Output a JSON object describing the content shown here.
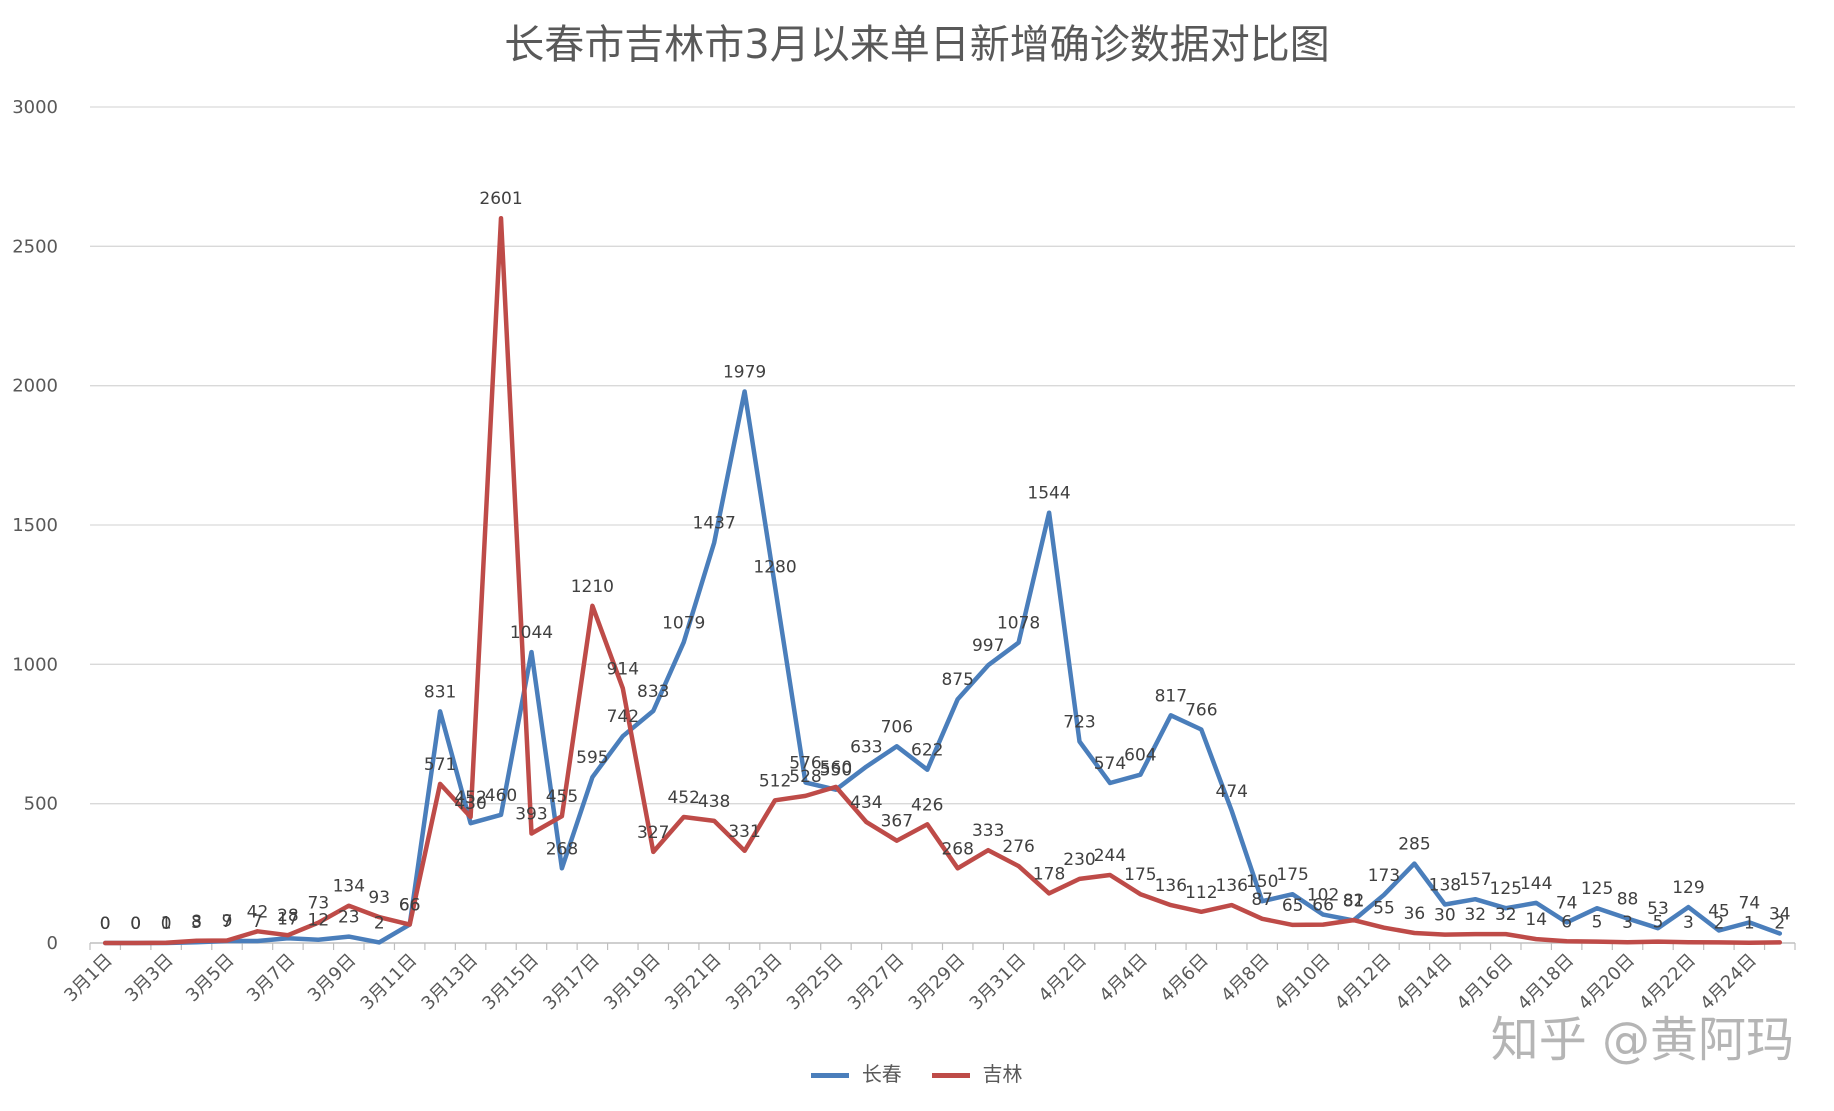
{
  "chart_data": {
    "type": "line",
    "title": "长春市吉林市3月以来单日新增确诊数据对比图",
    "ylim": [
      0,
      3000
    ],
    "y_ticks": [
      0,
      500,
      1000,
      1500,
      2000,
      2500,
      3000
    ],
    "grid": true,
    "legend_position": "bottom",
    "categories": [
      "3月1日",
      "3月2日",
      "3月3日",
      "3月4日",
      "3月5日",
      "3月6日",
      "3月7日",
      "3月8日",
      "3月9日",
      "3月10日",
      "3月11日",
      "3月12日",
      "3月13日",
      "3月14日",
      "3月15日",
      "3月16日",
      "3月17日",
      "3月18日",
      "3月19日",
      "3月20日",
      "3月21日",
      "3月22日",
      "3月23日",
      "3月24日",
      "3月25日",
      "3月26日",
      "3月27日",
      "3月28日",
      "3月29日",
      "3月30日",
      "3月31日",
      "4月1日",
      "4月2日",
      "4月3日",
      "4月4日",
      "4月5日",
      "4月6日",
      "4月7日",
      "4月8日",
      "4月9日",
      "4月10日",
      "4月11日",
      "4月12日",
      "4月13日",
      "4月14日",
      "4月15日",
      "4月16日",
      "4月17日",
      "4月18日",
      "4月19日",
      "4月20日",
      "4月21日",
      "4月22日",
      "4月23日",
      "4月24日",
      "4月25日"
    ],
    "x_tick_labels": [
      "3月1日",
      "3月3日",
      "3月5日",
      "3月7日",
      "3月9日",
      "3月11日",
      "3月13日",
      "3月15日",
      "3月17日",
      "3月19日",
      "3月21日",
      "3月23日",
      "3月25日",
      "3月27日",
      "3月29日",
      "3月31日",
      "4月2日",
      "4月4日",
      "4月6日",
      "4月8日",
      "4月10日",
      "4月12日",
      "4月14日",
      "4月16日",
      "4月18日",
      "4月20日",
      "4月22日",
      "4月24日"
    ],
    "series": [
      {
        "name": "长春",
        "color": "#4A7EBB",
        "values": [
          0,
          0,
          0,
          3,
          7,
          7,
          17,
          12,
          23,
          2,
          66,
          831,
          430,
          460,
          1044,
          268,
          595,
          742,
          833,
          1079,
          1437,
          1979,
          1280,
          576,
          550,
          633,
          706,
          622,
          875,
          997,
          1078,
          1544,
          723,
          574,
          604,
          817,
          766,
          474,
          150,
          175,
          102,
          81,
          173,
          285,
          138,
          157,
          125,
          144,
          74,
          125,
          88,
          53,
          129,
          45,
          74,
          34
        ]
      },
      {
        "name": "吉林",
        "color": "#BE4B48",
        "values": [
          0,
          0,
          1,
          8,
          9,
          42,
          28,
          73,
          134,
          93,
          66,
          571,
          452,
          2601,
          393,
          455,
          1210,
          914,
          327,
          452,
          438,
          331,
          512,
          528,
          560,
          434,
          367,
          426,
          268,
          333,
          276,
          178,
          230,
          244,
          175,
          136,
          112,
          136,
          87,
          65,
          66,
          82,
          55,
          36,
          30,
          32,
          32,
          14,
          6,
          5,
          3,
          5,
          3,
          2,
          1,
          2
        ]
      }
    ]
  },
  "watermark": "知乎 @黄阿玛"
}
